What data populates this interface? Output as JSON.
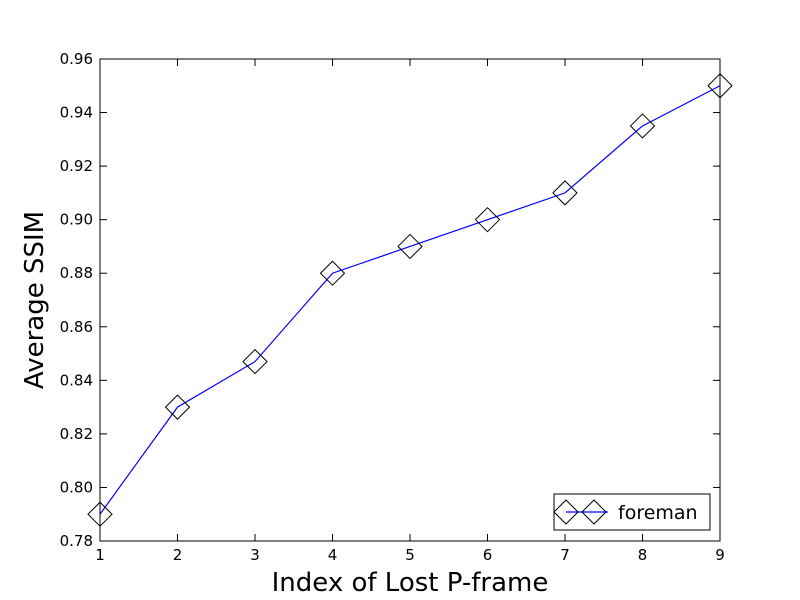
{
  "chart_data": {
    "type": "line",
    "title": "",
    "xlabel": "Index of Lost P-frame",
    "ylabel": "Average SSIM",
    "xlim": [
      1,
      9
    ],
    "ylim": [
      0.78,
      0.96
    ],
    "xticks": [
      1,
      2,
      3,
      4,
      5,
      6,
      7,
      8,
      9
    ],
    "xtick_labels": [
      "1",
      "2",
      "3",
      "4",
      "5",
      "6",
      "7",
      "8",
      "9"
    ],
    "yticks": [
      0.78,
      0.8,
      0.82,
      0.84,
      0.86,
      0.88,
      0.9,
      0.92,
      0.94,
      0.96
    ],
    "ytick_labels": [
      "0.78",
      "0.80",
      "0.82",
      "0.84",
      "0.86",
      "0.88",
      "0.90",
      "0.92",
      "0.94",
      "0.96"
    ],
    "grid": false,
    "legend_position": "bottom-right",
    "x": [
      1,
      2,
      3,
      4,
      5,
      6,
      7,
      8,
      9
    ],
    "series": [
      {
        "name": "foreman",
        "values": [
          0.79,
          0.83,
          0.847,
          0.88,
          0.89,
          0.9,
          0.91,
          0.935,
          0.95
        ],
        "line_color": "#0000ff",
        "marker": "diamond",
        "marker_face": "#ffffff",
        "marker_edge": "#000000"
      }
    ]
  }
}
